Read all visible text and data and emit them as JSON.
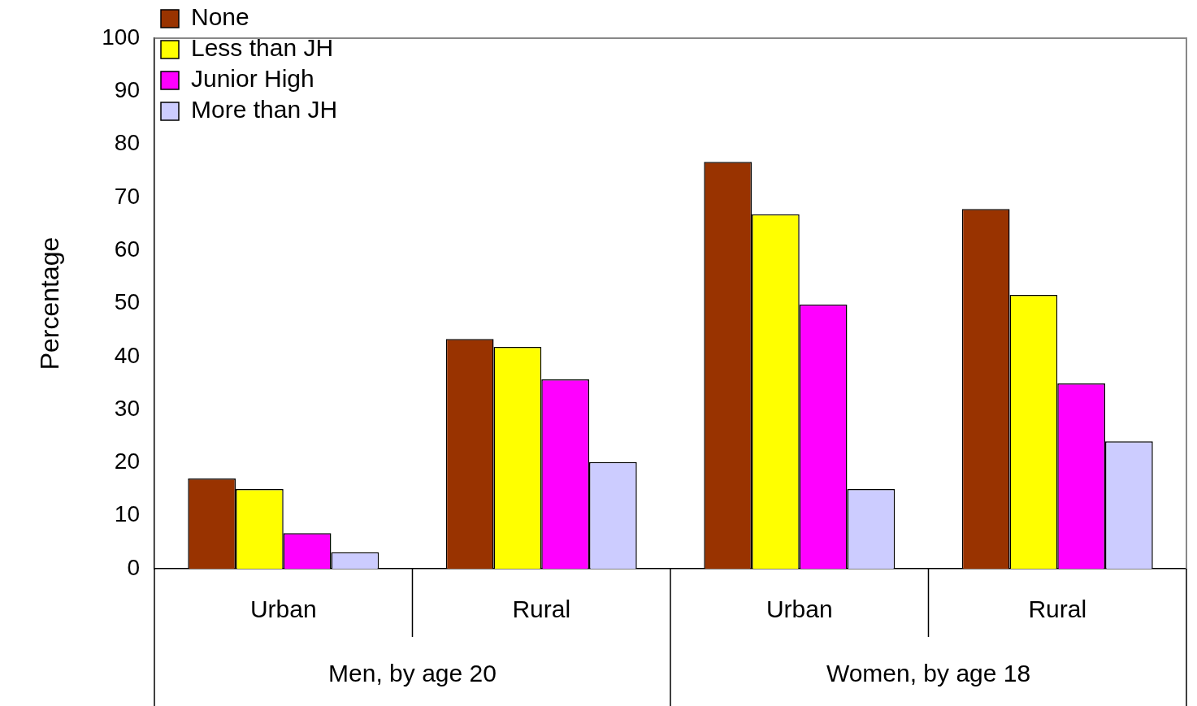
{
  "chart_data": {
    "type": "bar",
    "ylabel": "Percentage",
    "categories": [
      "Urban",
      "Rural",
      "Urban",
      "Rural"
    ],
    "annotations": [
      "Men, by age 20",
      "Women, by age 18"
    ],
    "series": [
      {
        "name": "None",
        "color": "#993300",
        "values": [
          17,
          43.3,
          76.7,
          67.8
        ]
      },
      {
        "name": "Less than JH",
        "color": "#ffff00",
        "values": [
          15,
          41.8,
          66.8,
          51.6
        ]
      },
      {
        "name": "Junior High",
        "color": "#ff00ff",
        "values": [
          6.7,
          35.7,
          49.8,
          34.9
        ]
      },
      {
        "name": "More than JH",
        "color": "#ccccff",
        "values": [
          3.1,
          20.1,
          15,
          24
        ]
      }
    ],
    "ylim": [
      0,
      100
    ],
    "yticks": [
      0,
      10,
      20,
      30,
      40,
      50,
      60,
      70,
      80,
      90,
      100
    ],
    "grid": false,
    "legend": "top left"
  }
}
